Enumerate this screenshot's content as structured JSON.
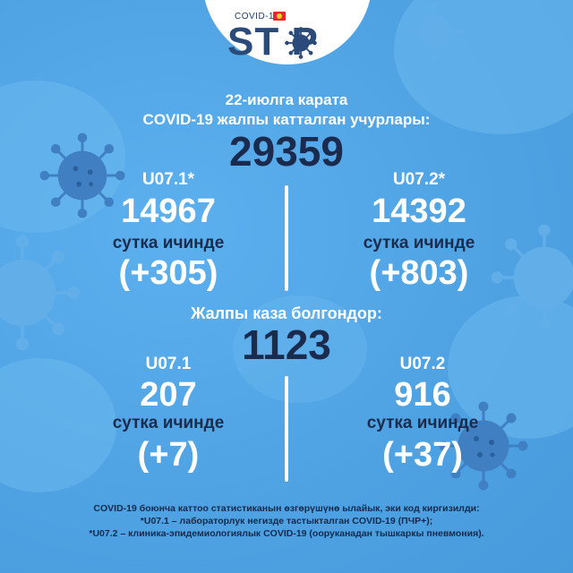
{
  "logo": {
    "small_text": "COVID-19",
    "big_text": "ST  P",
    "o_icon": "virus-icon"
  },
  "header": {
    "date_line": "22-июлга карата",
    "subtitle": "COVID-19 жалпы катталган учурлары:",
    "total": "29359"
  },
  "cases": {
    "left": {
      "code": "U07.1*",
      "value": "14967",
      "label": "сутка ичинде",
      "delta": "(+305)"
    },
    "right": {
      "code": "U07.2*",
      "value": "14392",
      "label": "сутка ичинде",
      "delta": "(+803)"
    }
  },
  "deaths": {
    "title": "Жалпы каза болгондор:",
    "total": "1123",
    "left": {
      "code": "U07.1",
      "value": "207",
      "label": "сутка ичинде",
      "delta": "(+7)"
    },
    "right": {
      "code": "U07.2",
      "value": "916",
      "label": "сутка ичинде",
      "delta": "(+37)"
    }
  },
  "footnote": {
    "line1": "COVID-19 боюнча каттоо статистиканын өзгөрүшүнө ылайык, эки код киргизилди:",
    "line2": "*U07.1 – лабораторлук негизде тастыкталган COVID-19 (ПЧР+);",
    "line3": "*U07.2 – клиника-эпидемиологиялык COVID-19 (ооруканадан тышкаркы пневмония)."
  },
  "colors": {
    "background": "#4fa3e3",
    "navy": "#1a2b4d",
    "virus": "#2f6bb0",
    "flag_red": "#e8262c"
  }
}
